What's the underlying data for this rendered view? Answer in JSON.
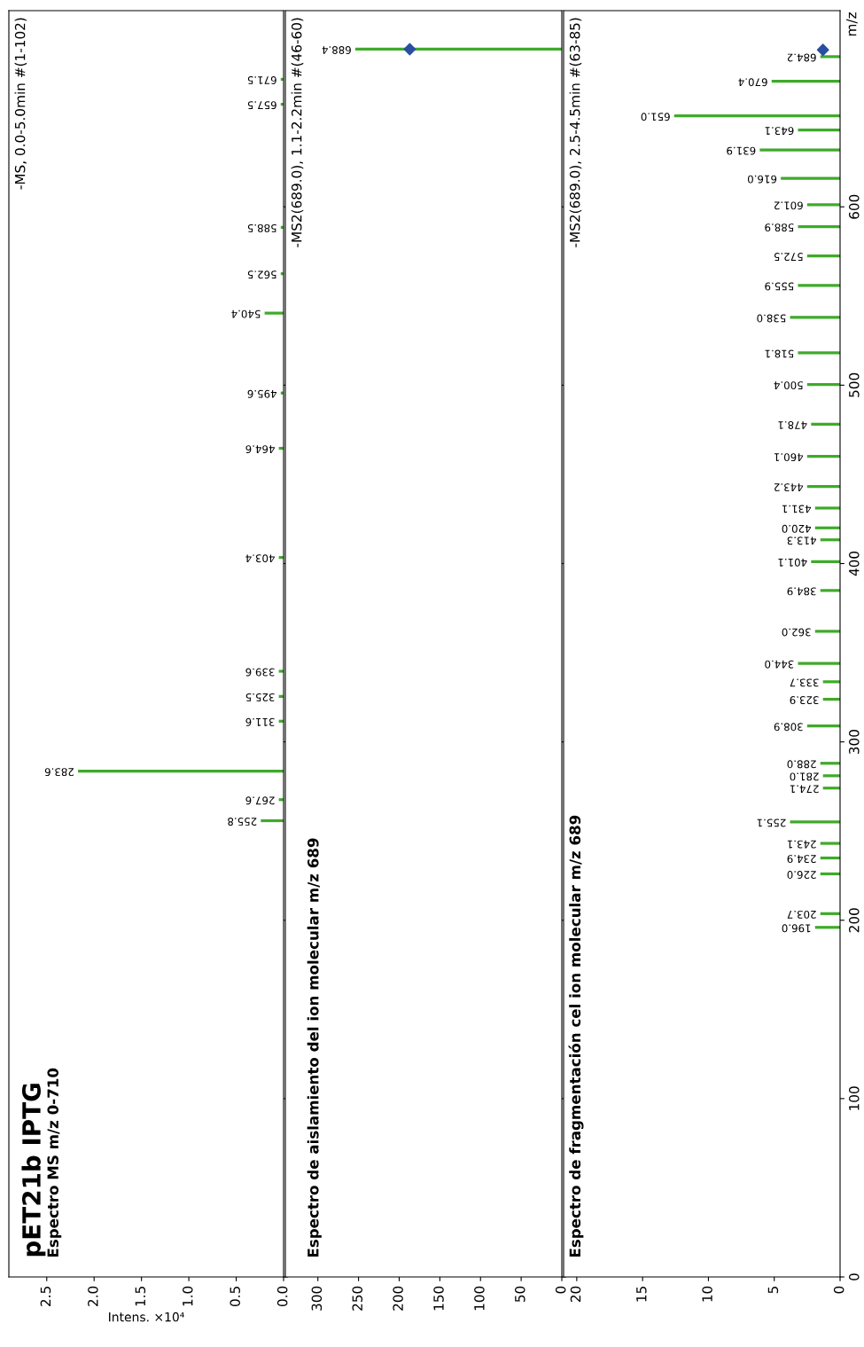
{
  "chart_data": [
    {
      "type": "bar",
      "orientation": "horizontal",
      "title": "pET21b IPTG",
      "subtitle": "Espectro MS m/z 0-710",
      "xlabel": "Intens. ×10⁴",
      "series": [
        {
          "type": "bar",
          "color": "#3faa2a",
          "x": [
            255.8,
            267.6,
            283.6,
            311.6,
            325.5,
            339.6,
            403.4,
            464.6,
            495.6,
            540.4,
            562.5,
            588.5,
            657.5,
            671.5
          ],
          "values": [
            0.24,
            0.05,
            2.17,
            0.05,
            0.05,
            0.05,
            0.05,
            0.05,
            0.03,
            0.2,
            0.03,
            0.03,
            0.03,
            0.03
          ]
        }
      ],
      "xlim": [
        2.9,
        0
      ],
      "xticks": [
        {
          "value": 0,
          "label": "0.0"
        },
        {
          "value": 0.5,
          "label": "0.5"
        },
        {
          "value": 1,
          "label": "1.0"
        },
        {
          "value": 1.5,
          "label": "1.5"
        },
        {
          "value": 2,
          "label": "2.0"
        },
        {
          "value": 2.5,
          "label": "2.5"
        }
      ],
      "ylim": [
        0,
        710
      ],
      "yticks": [
        0,
        100,
        200,
        300,
        400,
        500,
        600
      ],
      "tick_labels": "x",
      "grid": false,
      "legend": false,
      "annotations": [
        "-MS, 0.0-5.0min #(1-102)",
        {
          "text": "255.8",
          "x": 0.24,
          "y": 255.8
        },
        {
          "text": "267.6",
          "x": 0.05,
          "y": 267.6
        },
        {
          "text": "283.6",
          "x": 2.17,
          "y": 283.6
        },
        {
          "text": "311.6",
          "x": 0.05,
          "y": 311.6
        },
        {
          "text": "325.5",
          "x": 0.05,
          "y": 325.5
        },
        {
          "text": "339.6",
          "x": 0.05,
          "y": 339.6
        },
        {
          "text": "403.4",
          "x": 0.05,
          "y": 403.4
        },
        {
          "text": "464.6",
          "x": 0.05,
          "y": 464.6
        },
        {
          "text": "495.6",
          "x": 0.03,
          "y": 495.6
        },
        {
          "text": "540.4",
          "x": 0.2,
          "y": 540.4
        },
        {
          "text": "562.5",
          "x": 0.03,
          "y": 562.5
        },
        {
          "text": "588.5",
          "x": 0.03,
          "y": 588.5
        },
        {
          "text": "657.5",
          "x": 0.03,
          "y": 657.5
        },
        {
          "text": "671.5",
          "x": 0.03,
          "y": 671.5
        }
      ]
    },
    {
      "type": "bar",
      "orientation": "horizontal",
      "title": "Espectro de aislamiento del ion molecular m/z 689",
      "series": [
        {
          "type": "bar",
          "color": "#3faa2a",
          "x": [
            688.4
          ],
          "values": [
            254
          ]
        },
        {
          "type": "scatter",
          "color": "#2a4ea0",
          "marker": "diamond",
          "x": [
            688.4
          ],
          "values": [
            187
          ]
        }
      ],
      "xlim": [
        340,
        0
      ],
      "xticks": [
        0,
        50,
        100,
        150,
        200,
        250,
        300
      ],
      "ylim": [
        0,
        710
      ],
      "yticks": [
        0,
        100,
        200,
        300,
        400,
        500,
        600
      ],
      "tick_labels": "x",
      "grid": false,
      "legend": false,
      "annotations": [
        "-MS2(689.0), 1.1-2.2min #(46-60)",
        {
          "text": "688.4",
          "x": 254,
          "y": 688.4
        }
      ]
    },
    {
      "type": "bar",
      "orientation": "horizontal",
      "title": "Espectro de fragmentación cel ion molecular m/z 689",
      "ylabel": "m/z",
      "series": [
        {
          "type": "bar",
          "color": "#3faa2a",
          "x": [
            196.0,
            203.7,
            226.0,
            234.9,
            243.1,
            255.1,
            274.1,
            281.0,
            288.0,
            308.9,
            323.9,
            333.7,
            344.0,
            362.0,
            384.9,
            401.1,
            413.3,
            420.0,
            431.1,
            443.2,
            460.1,
            478.1,
            500.4,
            518.1,
            538.0,
            555.9,
            572.5,
            588.9,
            601.2,
            616.0,
            631.9,
            643.1,
            651.0,
            670.4,
            684.2
          ],
          "values": [
            1.9,
            1.5,
            1.5,
            1.5,
            1.5,
            3.8,
            1.3,
            1.3,
            1.5,
            2.5,
            1.3,
            1.3,
            3.2,
            1.9,
            1.5,
            2.2,
            1.5,
            1.9,
            1.9,
            2.5,
            2.5,
            2.2,
            2.5,
            3.2,
            3.8,
            3.2,
            2.5,
            3.2,
            2.5,
            4.5,
            6.1,
            3.2,
            12.6,
            5.2,
            1.5
          ]
        },
        {
          "type": "scatter",
          "color": "#2a4ea0",
          "marker": "diamond",
          "x": [
            688
          ],
          "values": [
            1.3
          ]
        }
      ],
      "xlim": [
        21,
        0
      ],
      "xticks": [
        0,
        5,
        10,
        15,
        20
      ],
      "ylim": [
        0,
        710
      ],
      "yticks": [
        0,
        100,
        200,
        300,
        400,
        500,
        600
      ],
      "grid": false,
      "legend": false,
      "annotations": [
        "-MS2(689.0), 2.5-4.5min #(63-85)",
        {
          "text": "196.0",
          "x": 1.9,
          "y": 196.0
        },
        {
          "text": "203.7",
          "x": 1.5,
          "y": 203.7
        },
        {
          "text": "226.0",
          "x": 1.5,
          "y": 226.0
        },
        {
          "text": "234.9",
          "x": 1.5,
          "y": 234.9
        },
        {
          "text": "243.1",
          "x": 1.5,
          "y": 243.1
        },
        {
          "text": "255.1",
          "x": 3.8,
          "y": 255.1
        },
        {
          "text": "274.1",
          "x": 1.3,
          "y": 274.1
        },
        {
          "text": "281.0",
          "x": 1.3,
          "y": 281.0
        },
        {
          "text": "288.0",
          "x": 1.5,
          "y": 288.0
        },
        {
          "text": "308.9",
          "x": 2.5,
          "y": 308.9
        },
        {
          "text": "323.9",
          "x": 1.3,
          "y": 323.9
        },
        {
          "text": "333.7",
          "x": 1.3,
          "y": 333.7
        },
        {
          "text": "344.0",
          "x": 3.2,
          "y": 344.0
        },
        {
          "text": "362.0",
          "x": 1.9,
          "y": 362.0
        },
        {
          "text": "384.9",
          "x": 1.5,
          "y": 384.9
        },
        {
          "text": "401.1",
          "x": 2.2,
          "y": 401.1
        },
        {
          "text": "413.3",
          "x": 1.5,
          "y": 413.3
        },
        {
          "text": "420.0",
          "x": 1.9,
          "y": 420.0
        },
        {
          "text": "431.1",
          "x": 1.9,
          "y": 431.1
        },
        {
          "text": "443.2",
          "x": 2.5,
          "y": 443.2
        },
        {
          "text": "460.1",
          "x": 2.5,
          "y": 460.1
        },
        {
          "text": "478.1",
          "x": 2.2,
          "y": 478.1
        },
        {
          "text": "500.4",
          "x": 2.5,
          "y": 500.4
        },
        {
          "text": "518.1",
          "x": 3.2,
          "y": 518.1
        },
        {
          "text": "538.0",
          "x": 3.8,
          "y": 538.0
        },
        {
          "text": "555.9",
          "x": 3.2,
          "y": 555.9
        },
        {
          "text": "572.5",
          "x": 2.5,
          "y": 572.5
        },
        {
          "text": "588.9",
          "x": 3.2,
          "y": 588.9
        },
        {
          "text": "601.2",
          "x": 2.5,
          "y": 601.2
        },
        {
          "text": "616.0",
          "x": 4.5,
          "y": 616.0
        },
        {
          "text": "631.9",
          "x": 6.1,
          "y": 631.9
        },
        {
          "text": "643.1",
          "x": 3.2,
          "y": 643.1
        },
        {
          "text": "651.0",
          "x": 12.6,
          "y": 651.0
        },
        {
          "text": "670.4",
          "x": 5.2,
          "y": 670.4
        },
        {
          "text": "684.2",
          "x": 1.5,
          "y": 684.2
        }
      ]
    }
  ]
}
